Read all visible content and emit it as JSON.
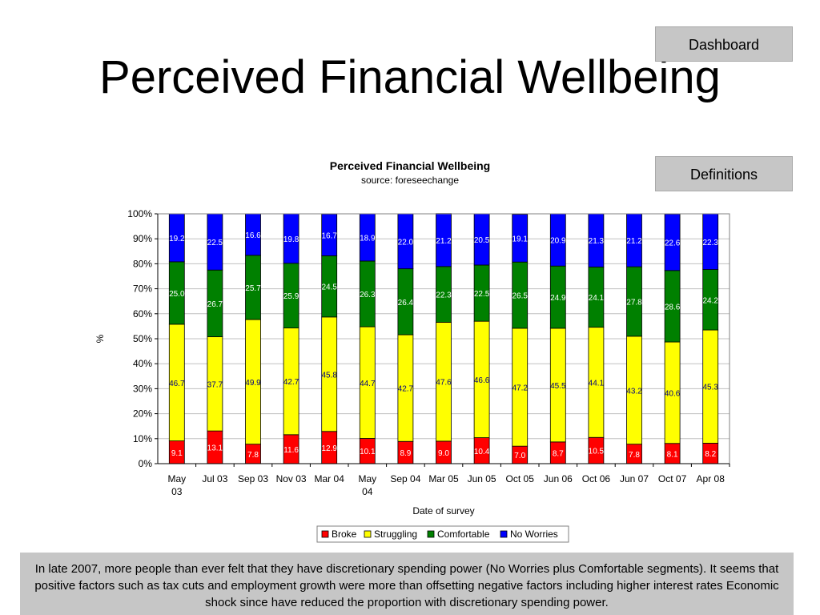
{
  "header": {
    "title": "Perceived Financial Wellbeing",
    "dashboard_label": "Dashboard",
    "definitions_label": "Definitions"
  },
  "footer": {
    "text": "In late 2007, more people than ever felt that they have discretionary spending power (No Worries plus Comfortable segments). It seems that positive factors such as tax cuts and employment growth were more than offsetting negative factors including higher interest rates  Economic shock since have reduced the proportion with discretionary spending power."
  },
  "chart_data": {
    "type": "bar",
    "stacked": "percent",
    "title": "Perceived Financial Wellbeing",
    "subtitle": "source: foreseechange",
    "xlabel": "Date of survey",
    "ylabel": "%",
    "ylim": [
      0,
      100
    ],
    "y_ticks": [
      "0%",
      "10%",
      "20%",
      "30%",
      "40%",
      "50%",
      "60%",
      "70%",
      "80%",
      "90%",
      "100%"
    ],
    "grid": true,
    "legend_position": "bottom",
    "categories": [
      [
        "May",
        "03"
      ],
      [
        "Jul 03"
      ],
      [
        "Sep 03"
      ],
      [
        "Nov 03"
      ],
      [
        "Mar 04"
      ],
      [
        "May",
        "04"
      ],
      [
        "Sep 04"
      ],
      [
        "Mar 05"
      ],
      [
        "Jun 05"
      ],
      [
        "Oct 05"
      ],
      [
        "Jun 06"
      ],
      [
        "Oct 06"
      ],
      [
        "Jun 07"
      ],
      [
        "Oct 07"
      ],
      [
        "Apr 08"
      ]
    ],
    "series": [
      {
        "name": "Broke",
        "color": "#ff0000",
        "label_color": "#ffffff",
        "values": [
          9.1,
          13.1,
          7.8,
          11.6,
          12.9,
          10.1,
          8.9,
          9.0,
          10.4,
          7.0,
          8.7,
          10.5,
          7.8,
          8.1,
          8.2
        ]
      },
      {
        "name": "Struggling",
        "color": "#ffff00",
        "label_color": "#000080",
        "values": [
          46.7,
          37.7,
          49.9,
          42.7,
          45.8,
          44.7,
          42.7,
          47.6,
          46.6,
          47.2,
          45.5,
          44.1,
          43.2,
          40.6,
          45.3
        ]
      },
      {
        "name": "Comfortable",
        "color": "#008000",
        "label_color": "#ffffff",
        "values": [
          25.0,
          26.7,
          25.7,
          25.9,
          24.5,
          26.3,
          26.4,
          22.3,
          22.5,
          26.5,
          24.9,
          24.1,
          27.8,
          28.6,
          24.2
        ]
      },
      {
        "name": "No Worries",
        "color": "#0000ff",
        "label_color": "#ffffff",
        "values": [
          19.2,
          22.5,
          16.6,
          19.8,
          16.7,
          18.9,
          22.0,
          21.2,
          20.5,
          19.1,
          20.9,
          21.3,
          21.2,
          22.6,
          22.3
        ]
      }
    ]
  }
}
